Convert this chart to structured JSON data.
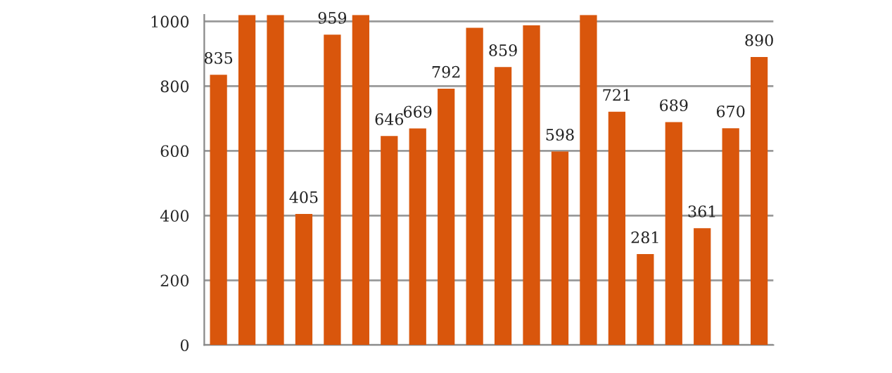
{
  "chart_data": {
    "type": "bar",
    "categories": [
      null,
      null,
      null,
      null,
      null,
      null,
      null,
      null,
      null,
      null,
      null,
      null,
      null,
      null,
      null,
      null,
      null,
      null,
      null,
      null
    ],
    "series": [
      {
        "color": "#d9560c",
        "values": [
          835,
          1020,
          1020,
          405,
          959,
          1020,
          646,
          669,
          792,
          980,
          859,
          988,
          598,
          1020,
          721,
          281,
          689,
          361,
          670,
          890
        ]
      }
    ],
    "value_labels": [
      "835",
      null,
      null,
      "405",
      "959",
      null,
      "646",
      "669",
      "792",
      null,
      "859",
      null,
      "598",
      null,
      "721",
      "281",
      "689",
      "361",
      "670",
      "890"
    ],
    "ylim": [
      0,
      1020
    ],
    "yticks": [
      0,
      200,
      400,
      600,
      800,
      1000
    ],
    "grid": "y",
    "tick_labels": "y"
  }
}
